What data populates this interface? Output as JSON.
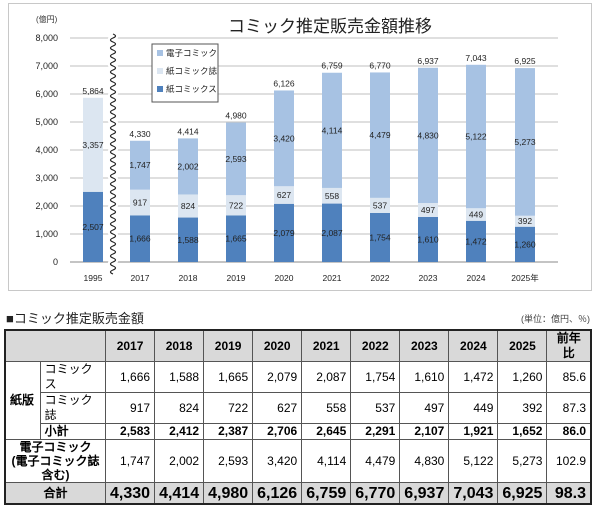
{
  "chart_data": {
    "type": "bar",
    "stacked": true,
    "title": "コミック推定販売金額推移",
    "ylabel": "(億円)",
    "ylim": [
      0,
      8000
    ],
    "yticks": [
      "0",
      "1,000",
      "2,000",
      "3,000",
      "4,000",
      "5,000",
      "6,000",
      "7,000",
      "8,000"
    ],
    "grid": true,
    "legend_position": "top-left",
    "axis_break_after": "1995",
    "categories": [
      "1995",
      "2017",
      "2018",
      "2019",
      "2020",
      "2021",
      "2022",
      "2023",
      "2024",
      "2025年"
    ],
    "series": [
      {
        "name": "紙コミックス",
        "color": "#4f81bd",
        "values": [
          2507,
          1666,
          1588,
          1665,
          2079,
          2087,
          1754,
          1610,
          1472,
          1260
        ],
        "labels": [
          "2,507",
          "1,666",
          "1,588",
          "1,665",
          "2,079",
          "2,087",
          "1,754",
          "1,610",
          "1,472",
          "1,260"
        ]
      },
      {
        "name": "紙コミック誌",
        "color": "#dce6f1",
        "values": [
          3357,
          917,
          824,
          722,
          627,
          558,
          537,
          497,
          449,
          392
        ],
        "labels": [
          "3,357",
          "917",
          "824",
          "722",
          "627",
          "558",
          "537",
          "497",
          "449",
          "392"
        ]
      },
      {
        "name": "電子コミック",
        "color": "#a7c2e3",
        "values": [
          0,
          1747,
          2002,
          2593,
          3420,
          4114,
          4479,
          4830,
          5122,
          5273
        ],
        "labels": [
          "",
          "1,747",
          "2,002",
          "2,593",
          "3,420",
          "4,114",
          "4,479",
          "4,830",
          "5,122",
          "5,273"
        ]
      }
    ],
    "totals": [
      "5,864",
      "4,330",
      "4,414",
      "4,980",
      "6,126",
      "6,759",
      "6,770",
      "6,937",
      "7,043",
      "6,925"
    ],
    "legend_order": [
      "電子コミック",
      "紙コミック誌",
      "紙コミックス"
    ]
  },
  "table": {
    "title": "■コミック推定販売金額",
    "unit": "(単位：億円、％)",
    "headers": [
      "2017",
      "2018",
      "2019",
      "2020",
      "2021",
      "2022",
      "2023",
      "2024",
      "2025",
      "前年比"
    ],
    "group_label": "紙版",
    "rows": [
      {
        "label": "コミックス",
        "values": [
          "1,666",
          "1,588",
          "1,665",
          "2,079",
          "2,087",
          "1,754",
          "1,610",
          "1,472",
          "1,260",
          "85.6"
        ]
      },
      {
        "label": "コミック誌",
        "values": [
          "917",
          "824",
          "722",
          "627",
          "558",
          "537",
          "497",
          "449",
          "392",
          "87.3"
        ]
      },
      {
        "label": "小計",
        "values": [
          "2,583",
          "2,412",
          "2,387",
          "2,706",
          "2,645",
          "2,291",
          "2,107",
          "1,921",
          "1,652",
          "86.0"
        ]
      },
      {
        "label": "電子コミック",
        "label2": "(電子コミック誌含む)",
        "values": [
          "1,747",
          "2,002",
          "2,593",
          "3,420",
          "4,114",
          "4,479",
          "4,830",
          "5,122",
          "5,273",
          "102.9"
        ]
      },
      {
        "label": "合計",
        "values": [
          "4,330",
          "4,414",
          "4,980",
          "6,126",
          "6,759",
          "6,770",
          "6,937",
          "7,043",
          "6,925",
          "98.3"
        ]
      }
    ]
  }
}
